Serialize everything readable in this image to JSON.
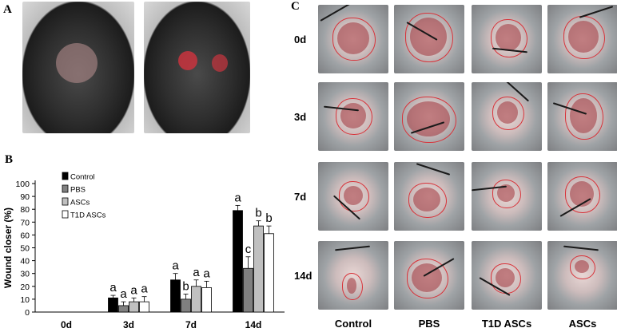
{
  "panels": {
    "a": "A",
    "b": "B",
    "c": "C"
  },
  "grid": {
    "rows": [
      "0d",
      "3d",
      "7d",
      "14d"
    ],
    "cols": [
      "Control",
      "PBS",
      "T1D ASCs",
      "ASCs"
    ]
  },
  "colors": {
    "outline": "#d8333a",
    "control": "#000000",
    "pbs": "#808080",
    "ascs": "#c0c0c0",
    "t1d": "#ffffff"
  },
  "chart_data": {
    "type": "bar",
    "ylabel": "Wound closer (%)",
    "xlabel": "",
    "ylim": [
      0,
      100
    ],
    "yticks": [
      0,
      10,
      20,
      30,
      40,
      50,
      60,
      70,
      80,
      90,
      100
    ],
    "categories": [
      "0d",
      "3d",
      "7d",
      "14d"
    ],
    "legend_position": "top-left",
    "series": [
      {
        "name": "Control",
        "color": "#000000",
        "values": [
          0,
          11,
          25,
          79
        ],
        "errors": [
          0,
          2,
          5,
          4
        ],
        "letters": [
          "",
          "a",
          "a",
          "a"
        ]
      },
      {
        "name": "PBS",
        "color": "#808080",
        "values": [
          0,
          5,
          10,
          34
        ],
        "errors": [
          0,
          3,
          4,
          9
        ],
        "letters": [
          "",
          "a",
          "b",
          "c"
        ]
      },
      {
        "name": "ASCs",
        "color": "#c0c0c0",
        "values": [
          0,
          8,
          20,
          67
        ],
        "errors": [
          0,
          3,
          5,
          4
        ],
        "letters": [
          "",
          "a",
          "a",
          "b"
        ]
      },
      {
        "name": "T1D ASCs",
        "color": "#ffffff",
        "values": [
          0,
          8,
          19,
          61
        ],
        "errors": [
          0,
          4,
          5,
          6
        ],
        "letters": [
          "",
          "a",
          "a",
          "b"
        ]
      }
    ]
  }
}
